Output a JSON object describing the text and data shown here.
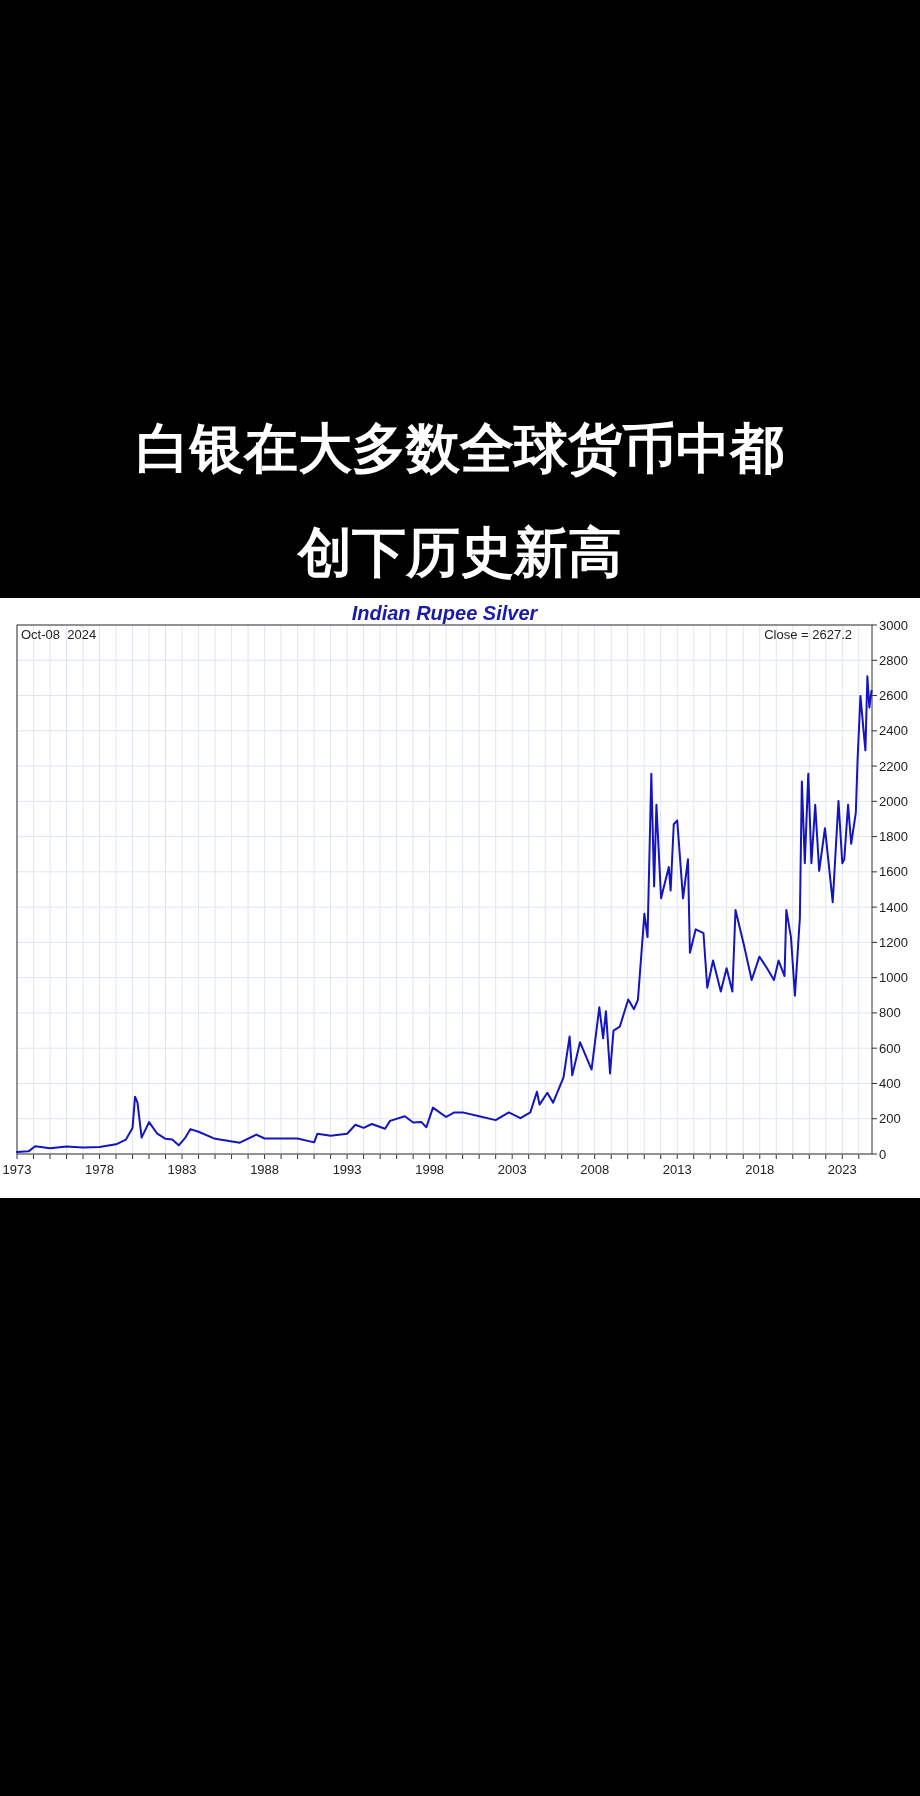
{
  "chart_data": {
    "type": "line",
    "title": "白银在大多数全球货币中都创下历史新高",
    "subtitle": "Indian Rupee Silver",
    "annotations": [
      "Oct-08  2024",
      "Close = 2627.2"
    ],
    "xlim": [
      1973,
      2024.8
    ],
    "xticks": [
      {
        "value": 1973,
        "label": "1973"
      },
      {
        "value": 1974,
        "label": null
      },
      {
        "value": 1975,
        "label": null
      },
      {
        "value": 1976,
        "label": null
      },
      {
        "value": 1977,
        "label": null
      },
      {
        "value": 1978,
        "label": "1978"
      },
      {
        "value": 1979,
        "label": null
      },
      {
        "value": 1980,
        "label": null
      },
      {
        "value": 1981,
        "label": null
      },
      {
        "value": 1982,
        "label": null
      },
      {
        "value": 1983,
        "label": "1983"
      },
      {
        "value": 1984,
        "label": null
      },
      {
        "value": 1985,
        "label": null
      },
      {
        "value": 1986,
        "label": null
      },
      {
        "value": 1987,
        "label": null
      },
      {
        "value": 1988,
        "label": "1988"
      },
      {
        "value": 1989,
        "label": null
      },
      {
        "value": 1990,
        "label": null
      },
      {
        "value": 1991,
        "label": null
      },
      {
        "value": 1992,
        "label": null
      },
      {
        "value": 1993,
        "label": "1993"
      },
      {
        "value": 1994,
        "label": null
      },
      {
        "value": 1995,
        "label": null
      },
      {
        "value": 1996,
        "label": null
      },
      {
        "value": 1997,
        "label": null
      },
      {
        "value": 1998,
        "label": "1998"
      },
      {
        "value": 1999,
        "label": null
      },
      {
        "value": 2000,
        "label": null
      },
      {
        "value": 2001,
        "label": null
      },
      {
        "value": 2002,
        "label": null
      },
      {
        "value": 2003,
        "label": "2003"
      },
      {
        "value": 2004,
        "label": null
      },
      {
        "value": 2005,
        "label": null
      },
      {
        "value": 2006,
        "label": null
      },
      {
        "value": 2007,
        "label": null
      },
      {
        "value": 2008,
        "label": "2008"
      },
      {
        "value": 2009,
        "label": null
      },
      {
        "value": 2010,
        "label": null
      },
      {
        "value": 2011,
        "label": null
      },
      {
        "value": 2012,
        "label": null
      },
      {
        "value": 2013,
        "label": "2013"
      },
      {
        "value": 2014,
        "label": null
      },
      {
        "value": 2015,
        "label": null
      },
      {
        "value": 2016,
        "label": null
      },
      {
        "value": 2017,
        "label": null
      },
      {
        "value": 2018,
        "label": "2018"
      },
      {
        "value": 2019,
        "label": null
      },
      {
        "value": 2020,
        "label": null
      },
      {
        "value": 2021,
        "label": null
      },
      {
        "value": 2022,
        "label": null
      },
      {
        "value": 2023,
        "label": "2023"
      },
      {
        "value": 2024,
        "label": null
      }
    ],
    "ylim": [
      0,
      3000
    ],
    "yticks": [
      0,
      200,
      400,
      600,
      800,
      1000,
      1200,
      1400,
      1600,
      1800,
      2000,
      2200,
      2400,
      2600,
      2800,
      3000
    ],
    "grid": true,
    "series": [
      {
        "color": "#1414c0",
        "x": [
          1973.0,
          1973.7,
          1974.1,
          1975.0,
          1976.0,
          1977.0,
          1978.0,
          1979.0,
          1979.6,
          1980.0,
          1980.15,
          1980.3,
          1980.55,
          1981.0,
          1981.5,
          1982.0,
          1982.4,
          1982.8,
          1983.2,
          1983.5,
          1984.0,
          1985.0,
          1986.5,
          1987.5,
          1988.0,
          1990.0,
          1991.0,
          1991.2,
          1992.0,
          1993.0,
          1993.5,
          1994.0,
          1994.5,
          1995.3,
          1995.6,
          1996.5,
          1997.0,
          1997.5,
          1997.8,
          1998.2,
          1998.6,
          1999.0,
          1999.5,
          2000.0,
          2001.0,
          2002.0,
          2002.8,
          2003.5,
          2004.1,
          2004.5,
          2004.66,
          2005.13,
          2005.48,
          2006.11,
          2006.48,
          2006.64,
          2007.11,
          2007.81,
          2008.28,
          2008.51,
          2008.68,
          2008.93,
          2009.14,
          2009.52,
          2010.03,
          2010.38,
          2010.62,
          2011.01,
          2011.2,
          2011.43,
          2011.6,
          2011.74,
          2012.02,
          2012.49,
          2012.6,
          2012.79,
          2013.0,
          2013.35,
          2013.65,
          2013.77,
          2014.12,
          2014.59,
          2014.82,
          2015.17,
          2015.64,
          2015.99,
          2016.34,
          2016.53,
          2017.04,
          2017.51,
          2017.98,
          2018.44,
          2018.86,
          2019.14,
          2019.5,
          2019.61,
          2019.89,
          2020.13,
          2020.43,
          2020.55,
          2020.73,
          2020.94,
          2021.13,
          2021.36,
          2021.6,
          2021.95,
          2022.42,
          2022.77,
          2023.0,
          2023.12,
          2023.35,
          2023.54,
          2023.82,
          2023.93,
          2024.1,
          2024.29,
          2024.4,
          2024.52,
          2024.64,
          2024.77
        ],
        "values": [
          11,
          15,
          44,
          33,
          42,
          37,
          40,
          55,
          82,
          148,
          325,
          291,
          93,
          181,
          115,
          86,
          82,
          49,
          93,
          141,
          126,
          86,
          64,
          110,
          88,
          88,
          66,
          115,
          104,
          115,
          166,
          148,
          170,
          143,
          188,
          214,
          179,
          181,
          152,
          263,
          236,
          210,
          236,
          236,
          214,
          192,
          236,
          203,
          236,
          353,
          280,
          347,
          291,
          435,
          667,
          446,
          634,
          479,
          832,
          656,
          810,
          457,
          700,
          722,
          876,
          821,
          876,
          1362,
          1230,
          2157,
          1517,
          1980,
          1450,
          1627,
          1494,
          1870,
          1892,
          1450,
          1671,
          1141,
          1274,
          1252,
          943,
          1097,
          921,
          1053,
          921,
          1384,
          1185,
          987,
          1119,
          1053,
          987,
          1097,
          1009,
          1384,
          1230,
          898,
          1340,
          2113,
          1649,
          2157,
          1649,
          1980,
          1605,
          1848,
          1428,
          2002,
          1649,
          1671,
          1980,
          1759,
          1936,
          2245,
          2598,
          2400,
          2289,
          2709,
          2532,
          2627
        ]
      }
    ]
  }
}
